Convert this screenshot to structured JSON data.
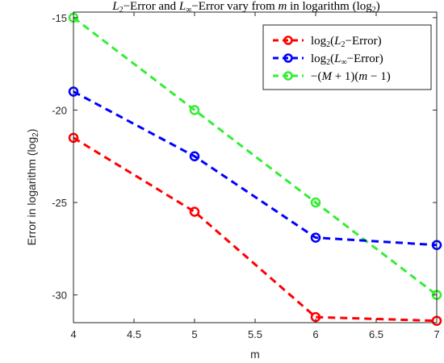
{
  "chart_data": {
    "type": "line",
    "title": {
      "L2": "L",
      "L2_sub": "2",
      "part1": "−Error and ",
      "Linf": "L",
      "Linf_sub": "∞",
      "part2": "−Error vary from ",
      "m": "m",
      "part3": " in logarithm (log",
      "log_sub": "2",
      "part4": ")"
    },
    "xlabel": "m",
    "ylabel": "Error in logarithm (log",
    "ylabel_sub": "2",
    "ylabel_end": ")",
    "xlim": [
      4,
      7
    ],
    "ylim": [
      -31.5,
      -14.7
    ],
    "xticks": [
      4,
      4.5,
      5,
      5.5,
      6,
      6.5,
      7
    ],
    "xtick_labels": [
      "4",
      "4.5",
      "5",
      "5.5",
      "6",
      "6.5",
      "7"
    ],
    "yticks": [
      -30,
      -25,
      -20,
      -15
    ],
    "ytick_labels": [
      "-30",
      "-25",
      "-20",
      "-15"
    ],
    "grid": false,
    "legend_position": "top-right",
    "x": [
      4,
      5,
      6,
      7
    ],
    "series": [
      {
        "color": "#ff0000",
        "values": [
          -21.5,
          -25.5,
          -31.2,
          -31.4
        ],
        "legend": {
          "pre": "log",
          "sub1": "2",
          "mid": "(",
          "L": "L",
          "sub2": "2",
          "post": "−Error)"
        }
      },
      {
        "color": "#0000ff",
        "values": [
          -19,
          -22.5,
          -26.9,
          -27.3
        ],
        "legend": {
          "pre": "log",
          "sub1": "2",
          "mid": "(",
          "L": "L",
          "sub2": "∞",
          "post": "−Error)"
        }
      },
      {
        "color": "#33ee33",
        "values": [
          -15,
          -20,
          -25,
          -30
        ],
        "legend": {
          "pre": "−(",
          "M": "M",
          "plus": " + 1)(",
          "m": "m",
          "post": " − 1)"
        }
      }
    ]
  }
}
